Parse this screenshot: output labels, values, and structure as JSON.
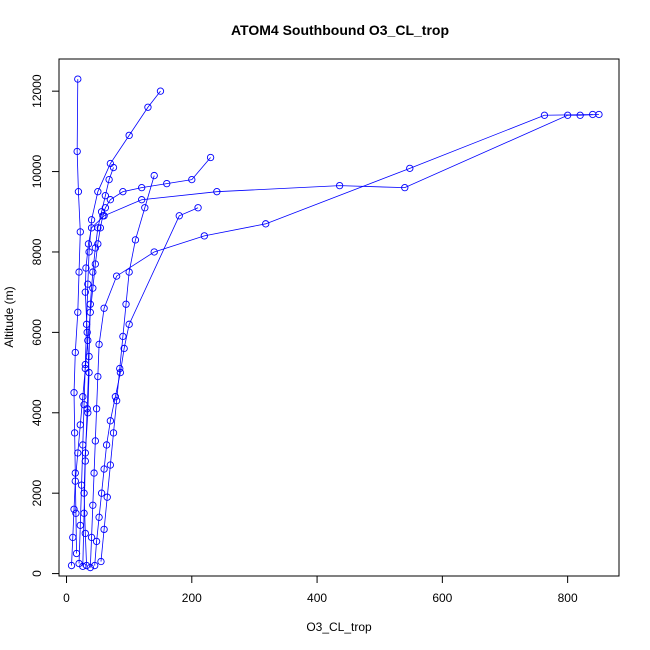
{
  "chart_data": {
    "type": "scatter",
    "title": "ATOM4 Southbound O3_CL_trop",
    "xlabel": "O3_CL_trop",
    "ylabel": "Altitude (m)",
    "xlim": [
      -12,
      882
    ],
    "ylim": [
      -60,
      12800
    ],
    "x_ticks": [
      0,
      200,
      400,
      600,
      800
    ],
    "y_ticks": [
      0,
      2000,
      4000,
      6000,
      8000,
      10000,
      12000
    ],
    "grid": false,
    "legend": "none",
    "marker": "open-circle",
    "connect_points": true,
    "series_color": "#0000ff",
    "series": [
      {
        "x": [
          8,
          10,
          12,
          14,
          18,
          22,
          26,
          30,
          34,
          38,
          42,
          46,
          50,
          54,
          58,
          62,
          70,
          90,
          120,
          160,
          200,
          230
        ],
        "y": [
          200,
          900,
          1600,
          2300,
          3000,
          3700,
          4400,
          5100,
          5800,
          6500,
          7100,
          7700,
          8200,
          8600,
          8900,
          9100,
          9300,
          9500,
          9600,
          9700,
          9800,
          10350
        ]
      },
      {
        "x": [
          32,
          30,
          28,
          30,
          34,
          36,
          33,
          30,
          31,
          35,
          40,
          60,
          120,
          240,
          436,
          540,
          800,
          820,
          850
        ],
        "y": [
          200,
          1000,
          2000,
          3000,
          4000,
          5000,
          6000,
          7000,
          7600,
          8200,
          8600,
          8900,
          9300,
          9500,
          9650,
          9600,
          11400,
          11400,
          11420
        ]
      },
      {
        "x": [
          38,
          40,
          42,
          44,
          46,
          48,
          50,
          52,
          60,
          80,
          140,
          220,
          318,
          548,
          763,
          840
        ],
        "y": [
          150,
          900,
          1700,
          2500,
          3300,
          4100,
          4900,
          5700,
          6600,
          7400,
          8000,
          8400,
          8700,
          10080,
          11400,
          11420
        ]
      },
      {
        "x": [
          20,
          22,
          24,
          26,
          28,
          30,
          32,
          34,
          36,
          40,
          50,
          70,
          100,
          130,
          150
        ],
        "y": [
          250,
          1200,
          2200,
          3200,
          4200,
          5200,
          6200,
          7200,
          8000,
          8800,
          9500,
          10200,
          10900,
          11600,
          12000
        ]
      },
      {
        "x": [
          55,
          60,
          65,
          70,
          75,
          80,
          85,
          90,
          95,
          100,
          110,
          125,
          140
        ],
        "y": [
          300,
          1100,
          1900,
          2700,
          3500,
          4300,
          5100,
          5900,
          6700,
          7500,
          8300,
          9100,
          9900
        ]
      },
      {
        "x": [
          16,
          15,
          14,
          13,
          12,
          14,
          18,
          20,
          22,
          19,
          17,
          18
        ],
        "y": [
          500,
          1500,
          2500,
          3500,
          4500,
          5500,
          6500,
          7500,
          8500,
          9500,
          10500,
          12300
        ]
      },
      {
        "x": [
          45,
          48,
          52,
          56,
          60,
          64,
          70,
          78,
          86,
          92,
          100,
          180,
          210
        ],
        "y": [
          200,
          800,
          1400,
          2000,
          2600,
          3200,
          3800,
          4400,
          5000,
          5600,
          6200,
          8900,
          9100
        ]
      },
      {
        "x": [
          26,
          28,
          30,
          33,
          36,
          38,
          42,
          46,
          50,
          56,
          62,
          68,
          75
        ],
        "y": [
          180,
          1500,
          2800,
          4100,
          5400,
          6700,
          7500,
          8100,
          8600,
          9000,
          9400,
          9800,
          10100
        ]
      }
    ]
  }
}
